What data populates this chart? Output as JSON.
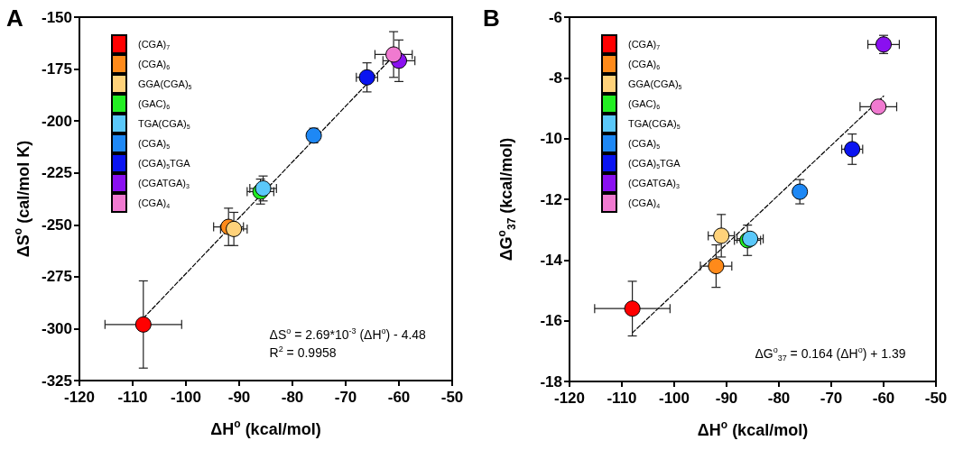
{
  "chart_data": [
    {
      "type": "scatter",
      "title": "A",
      "xlabel": "ΔH$^{o}$ (kcal/mol)",
      "ylabel": "ΔS$^{o}$ (cal/mol K)",
      "xlim": [
        -120,
        -50
      ],
      "xticks": [
        -120,
        -110,
        -100,
        -90,
        -80,
        -70,
        -60,
        -50
      ],
      "ylim": [
        -325,
        -150
      ],
      "yticks": [
        -325,
        -300,
        -275,
        -250,
        -225,
        -200,
        -175,
        -150
      ],
      "grid": false,
      "legend": "top left",
      "marker": "circle",
      "annotations": [
        "ΔS$^{o}$ = 2.69*10$^{-3}$ (ΔH$^{o}$) - 4.48",
        "R$^{2}$ = 0.9958"
      ],
      "series": [
        {
          "type": "line",
          "x": [
            -108,
            -60
          ],
          "values": [
            -295,
            -166
          ],
          "color": "#000000",
          "line_style": "dashed",
          "marker": "none"
        },
        {
          "name": "(CGA)$_{7}$",
          "color": "#ff0000",
          "x": [
            -108
          ],
          "values": [
            -298
          ],
          "errors": [
            21
          ],
          "xerrors": [
            7.2
          ]
        },
        {
          "name": "(CGA)$_{6}$",
          "color": "#ff8a1a",
          "x": [
            -92
          ],
          "values": [
            -251
          ],
          "errors": [
            9
          ],
          "xerrors": [
            2.8
          ]
        },
        {
          "name": "GGA(CGA)$_{5}$",
          "color": "#ffd27a",
          "x": [
            -91
          ],
          "values": [
            -252
          ],
          "errors": [
            8
          ],
          "xerrors": [
            2.5
          ]
        },
        {
          "name": "(GAC)$_{6}$",
          "color": "#22ee22",
          "x": [
            -86
          ],
          "values": [
            -234
          ],
          "errors": [
            6
          ],
          "xerrors": [
            2.5
          ]
        },
        {
          "name": "TGA(CGA)$_{5}$",
          "color": "#5ac8fa",
          "x": [
            -85.5
          ],
          "values": [
            -232.5
          ],
          "errors": [
            6
          ],
          "xerrors": [
            2.5
          ]
        },
        {
          "name": "(CGA)$_{5}$",
          "color": "#1e88f5",
          "x": [
            -76
          ],
          "values": [
            -207
          ],
          "errors": [
            3.5
          ]
        },
        {
          "name": "(CGA)$_{5}$TGA",
          "color": "#0a14f0",
          "x": [
            -66
          ],
          "values": [
            -179
          ],
          "errors": [
            7
          ],
          "xerrors": [
            2
          ]
        },
        {
          "name": "(CGATGA)$_{3}$",
          "color": "#8a10f0",
          "x": [
            -60
          ],
          "values": [
            -171
          ],
          "errors": [
            10
          ],
          "xerrors": [
            3
          ]
        },
        {
          "name": "(CGA)$_{4}$",
          "color": "#f07ad0",
          "x": [
            -61
          ],
          "values": [
            -168
          ],
          "errors": [
            11
          ],
          "xerrors": [
            3.5
          ]
        }
      ]
    },
    {
      "type": "scatter",
      "title": "B",
      "xlabel": "ΔH$^{o}$ (kcal/mol)",
      "ylabel": "ΔG$^{o}$$_{37}$ (kcal/mol)",
      "xlim": [
        -120,
        -50
      ],
      "xticks": [
        -120,
        -110,
        -100,
        -90,
        -80,
        -70,
        -60,
        -50
      ],
      "ylim": [
        -18,
        -6
      ],
      "yticks": [
        -18,
        -16,
        -14,
        -12,
        -10,
        -8,
        -6
      ],
      "grid": false,
      "legend": "top left",
      "marker": "circle",
      "annotations": [
        "ΔG$^{o}$$_{37}$ = 0.164 (ΔH$^{o}$) + 1.39"
      ],
      "series": [
        {
          "type": "line",
          "x": [
            -108,
            -60
          ],
          "values": [
            -16.4,
            -8.6
          ],
          "color": "#000000",
          "line_style": "dashed",
          "marker": "none"
        },
        {
          "name": "(CGA)$_{7}$",
          "color": "#ff0000",
          "x": [
            -108
          ],
          "values": [
            -15.6
          ],
          "errors": [
            0.9
          ],
          "xerrors": [
            7.2
          ]
        },
        {
          "name": "(CGA)$_{6}$",
          "color": "#ff8a1a",
          "x": [
            -92
          ],
          "values": [
            -14.2
          ],
          "errors": [
            0.7
          ],
          "xerrors": [
            3
          ]
        },
        {
          "name": "GGA(CGA)$_{5}$",
          "color": "#ffd27a",
          "x": [
            -91
          ],
          "values": [
            -13.2
          ],
          "errors": [
            0.7
          ],
          "xerrors": [
            2.5
          ]
        },
        {
          "name": "(GAC)$_{6}$",
          "color": "#22ee22",
          "x": [
            -86
          ],
          "values": [
            -13.35
          ],
          "errors": [
            0.5
          ],
          "xerrors": [
            2.5
          ]
        },
        {
          "name": "TGA(CGA)$_{5}$",
          "color": "#5ac8fa",
          "x": [
            -85.5
          ],
          "values": [
            -13.3
          ],
          "errors": [
            null
          ],
          "xerrors": [
            2.5
          ]
        },
        {
          "name": "(CGA)$_{5}$",
          "color": "#1e88f5",
          "x": [
            -76
          ],
          "values": [
            -11.75
          ],
          "errors": [
            0.4
          ]
        },
        {
          "name": "(CGA)$_{5}$TGA",
          "color": "#0a14f0",
          "x": [
            -66
          ],
          "values": [
            -10.35
          ],
          "errors": [
            0.5
          ],
          "xerrors": [
            2
          ]
        },
        {
          "name": "(CGATGA)$_{3}$",
          "color": "#8a10f0",
          "x": [
            -60
          ],
          "values": [
            -6.9
          ],
          "errors": [
            0.3
          ],
          "xerrors": [
            3
          ]
        },
        {
          "name": "(CGA)$_{4}$",
          "color": "#f07ad0",
          "x": [
            -61
          ],
          "values": [
            -8.95
          ],
          "errors": [
            null
          ],
          "xerrors": [
            3.5
          ]
        }
      ]
    }
  ]
}
